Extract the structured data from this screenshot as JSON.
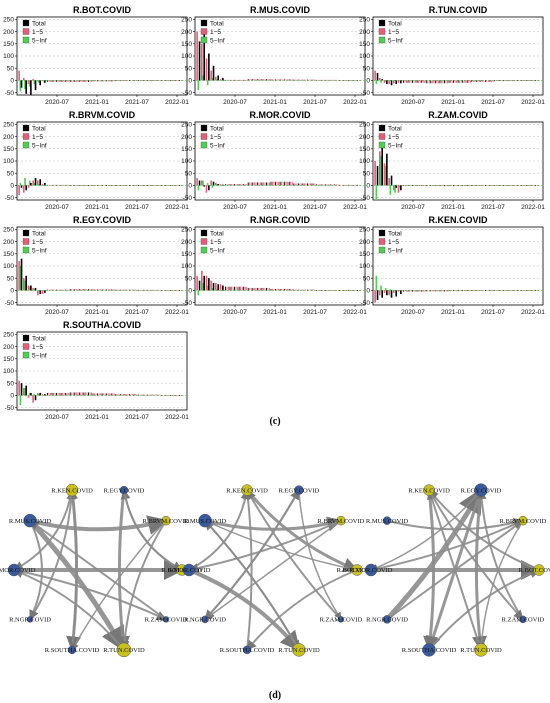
{
  "caption_c": "(c)",
  "caption_d": "(d)",
  "colors": {
    "total": "#000000",
    "s1_5": "#e0607a",
    "s5_inf": "#55cc55",
    "node_yellow": "#c8c020",
    "node_blue": "#3a5a9a",
    "edge": "#8c8c8c"
  },
  "chart_data": {
    "type": "bar",
    "x_ticks": [
      "2020-07",
      "2021-01",
      "2021-07",
      "2022-01"
    ],
    "y_ticks": [
      -50,
      0,
      50,
      100,
      150,
      200,
      250
    ],
    "ylim": [
      -60,
      260
    ],
    "legend": [
      "Total",
      "1−5",
      "5−Inf"
    ],
    "legend_position": "top-left",
    "grid": "horizontal-dashed",
    "panels": [
      {
        "title": "R.BOT.COVID",
        "early": {
          "total": [
            -30,
            -55,
            -60,
            -40,
            -20,
            -10
          ],
          "s1_5": [
            40,
            10,
            -15,
            5,
            -5,
            0
          ],
          "s5_inf": [
            -45,
            -35,
            -25,
            -15,
            -10,
            -5
          ]
        },
        "later": [
          -6,
          -6,
          -4,
          0,
          0,
          0
        ]
      },
      {
        "title": "R.MUS.COVID",
        "early": {
          "total": [
            160,
            190,
            110,
            60,
            20,
            10
          ],
          "s1_5": [
            200,
            150,
            90,
            40,
            15,
            5
          ],
          "s5_inf": [
            -40,
            20,
            -20,
            10,
            5,
            0
          ]
        },
        "later": [
          2,
          5,
          4,
          3,
          2,
          1
        ]
      },
      {
        "title": "R.TUN.COVID",
        "early": {
          "total": [
            30,
            5,
            -15,
            -20,
            -15,
            -12
          ],
          "s1_5": [
            40,
            10,
            -10,
            -15,
            -12,
            -10
          ],
          "s5_inf": [
            -15,
            -10,
            -5,
            -3,
            0,
            0
          ]
        },
        "later": [
          -10,
          -12,
          -10,
          -6,
          -3,
          0
        ]
      },
      {
        "title": "R.BRVM.COVID",
        "early": {
          "total": [
            -10,
            -20,
            10,
            30,
            25,
            10
          ],
          "s1_5": [
            -40,
            -30,
            -10,
            20,
            20,
            5
          ],
          "s5_inf": [
            10,
            30,
            20,
            10,
            5,
            0
          ]
        },
        "later": [
          2,
          0,
          -1,
          -1,
          0,
          0
        ]
      },
      {
        "title": "R.MOR.COVID",
        "early": {
          "total": [
            20,
            -5,
            -20,
            15,
            5,
            3
          ],
          "s1_5": [
            30,
            20,
            -30,
            20,
            10,
            5
          ],
          "s5_inf": [
            -20,
            20,
            10,
            -10,
            5,
            0
          ]
        },
        "later": [
          5,
          12,
          15,
          8,
          4,
          2
        ]
      },
      {
        "title": "R.ZAM.COVID",
        "early": {
          "total": [
            80,
            160,
            130,
            40,
            -10,
            -20
          ],
          "s1_5": [
            100,
            140,
            90,
            30,
            -20,
            -30
          ],
          "s5_inf": [
            -60,
            120,
            80,
            -40,
            -30,
            -10
          ]
        },
        "later": [
          -2,
          -3,
          -3,
          -2,
          -1,
          0
        ]
      },
      {
        "title": "R.EGY.COVID",
        "early": {
          "total": [
            130,
            60,
            20,
            10,
            -15,
            -10
          ],
          "s1_5": [
            120,
            50,
            20,
            10,
            -20,
            -15
          ],
          "s5_inf": [
            100,
            40,
            15,
            5,
            0,
            0
          ]
        },
        "later": [
          3,
          5,
          4,
          3,
          2,
          1
        ]
      },
      {
        "title": "R.NGR.COVID",
        "early": {
          "total": [
            40,
            60,
            50,
            30,
            25,
            20
          ],
          "s1_5": [
            60,
            80,
            60,
            40,
            30,
            25
          ],
          "s5_inf": [
            -20,
            30,
            20,
            10,
            5,
            0
          ]
        },
        "later": [
          15,
          10,
          6,
          3,
          1,
          0
        ]
      },
      {
        "title": "R.KEN.COVID",
        "early": {
          "total": [
            -40,
            -30,
            -20,
            -30,
            -25,
            -15
          ],
          "s1_5": [
            -50,
            -20,
            -10,
            -20,
            -10,
            -5
          ],
          "s5_inf": [
            60,
            20,
            10,
            5,
            0,
            0
          ]
        },
        "later": [
          -5,
          -4,
          -3,
          -1,
          0,
          0
        ]
      },
      {
        "title": "R.SOUTHA.COVID",
        "early": {
          "total": [
            50,
            40,
            10,
            -20,
            10,
            5
          ],
          "s1_5": [
            60,
            30,
            -10,
            -30,
            10,
            5
          ],
          "s5_inf": [
            -40,
            30,
            10,
            5,
            5,
            0
          ]
        },
        "later": [
          10,
          12,
          8,
          5,
          3,
          1
        ]
      }
    ]
  },
  "network": {
    "nodes": [
      {
        "id": "R.KEN.COVID",
        "color": "yellow"
      },
      {
        "id": "R.EGY.COVID",
        "color": "blue"
      },
      {
        "id": "R.MUS.COVID",
        "color": "blue"
      },
      {
        "id": "R.BRVM.COVID",
        "color": "yellow"
      },
      {
        "id": "R.MOR.COVID",
        "color": "blue"
      },
      {
        "id": "R.BOT.COVID",
        "color": "yellow"
      },
      {
        "id": "R.NGR.COVID",
        "color": "blue"
      },
      {
        "id": "R.ZAM.COVID",
        "color": "blue"
      },
      {
        "id": "R.SOUTHA.COVID",
        "color": "blue"
      },
      {
        "id": "R.TUN.COVID",
        "color": "yellow"
      }
    ],
    "graphs": [
      {
        "sizes": [
          12,
          8,
          13,
          9,
          12,
          11,
          6,
          6,
          8,
          14
        ],
        "edges": [
          [
            2,
            3,
            4
          ],
          [
            2,
            9,
            5
          ],
          [
            4,
            5,
            4
          ],
          [
            0,
            8,
            3
          ],
          [
            1,
            9,
            3
          ],
          [
            6,
            0,
            2
          ],
          [
            4,
            7,
            2
          ],
          [
            3,
            9,
            2
          ],
          [
            8,
            0,
            2
          ],
          [
            5,
            1,
            2
          ],
          [
            2,
            6,
            2
          ],
          [
            9,
            4,
            2
          ],
          [
            7,
            2,
            2
          ],
          [
            1,
            5,
            2
          ],
          [
            3,
            8,
            1.5
          ],
          [
            0,
            4,
            2
          ]
        ]
      },
      {
        "sizes": [
          11,
          9,
          13,
          9,
          12,
          11,
          7,
          6,
          8,
          13
        ],
        "edges": [
          [
            4,
            9,
            4
          ],
          [
            0,
            5,
            3
          ],
          [
            2,
            3,
            3
          ],
          [
            8,
            0,
            2
          ],
          [
            2,
            9,
            2
          ],
          [
            1,
            6,
            2
          ],
          [
            4,
            0,
            2
          ],
          [
            5,
            8,
            2
          ],
          [
            3,
            4,
            2
          ],
          [
            6,
            1,
            2
          ],
          [
            7,
            0,
            2
          ],
          [
            9,
            2,
            2
          ],
          [
            1,
            7,
            1.5
          ],
          [
            3,
            6,
            1.5
          ],
          [
            5,
            2,
            1.5
          ]
        ]
      },
      {
        "sizes": [
          11,
          13,
          8,
          9,
          12,
          11,
          8,
          7,
          13,
          13
        ],
        "edges": [
          [
            6,
            1,
            5
          ],
          [
            4,
            5,
            4
          ],
          [
            0,
            8,
            3
          ],
          [
            1,
            8,
            3
          ],
          [
            1,
            9,
            3
          ],
          [
            4,
            3,
            2
          ],
          [
            5,
            0,
            2
          ],
          [
            9,
            0,
            2
          ],
          [
            2,
            3,
            2
          ],
          [
            8,
            5,
            2
          ],
          [
            7,
            1,
            2
          ],
          [
            0,
            7,
            2
          ],
          [
            6,
            3,
            2
          ],
          [
            1,
            4,
            1.5
          ],
          [
            3,
            9,
            1.5
          ]
        ]
      }
    ]
  }
}
